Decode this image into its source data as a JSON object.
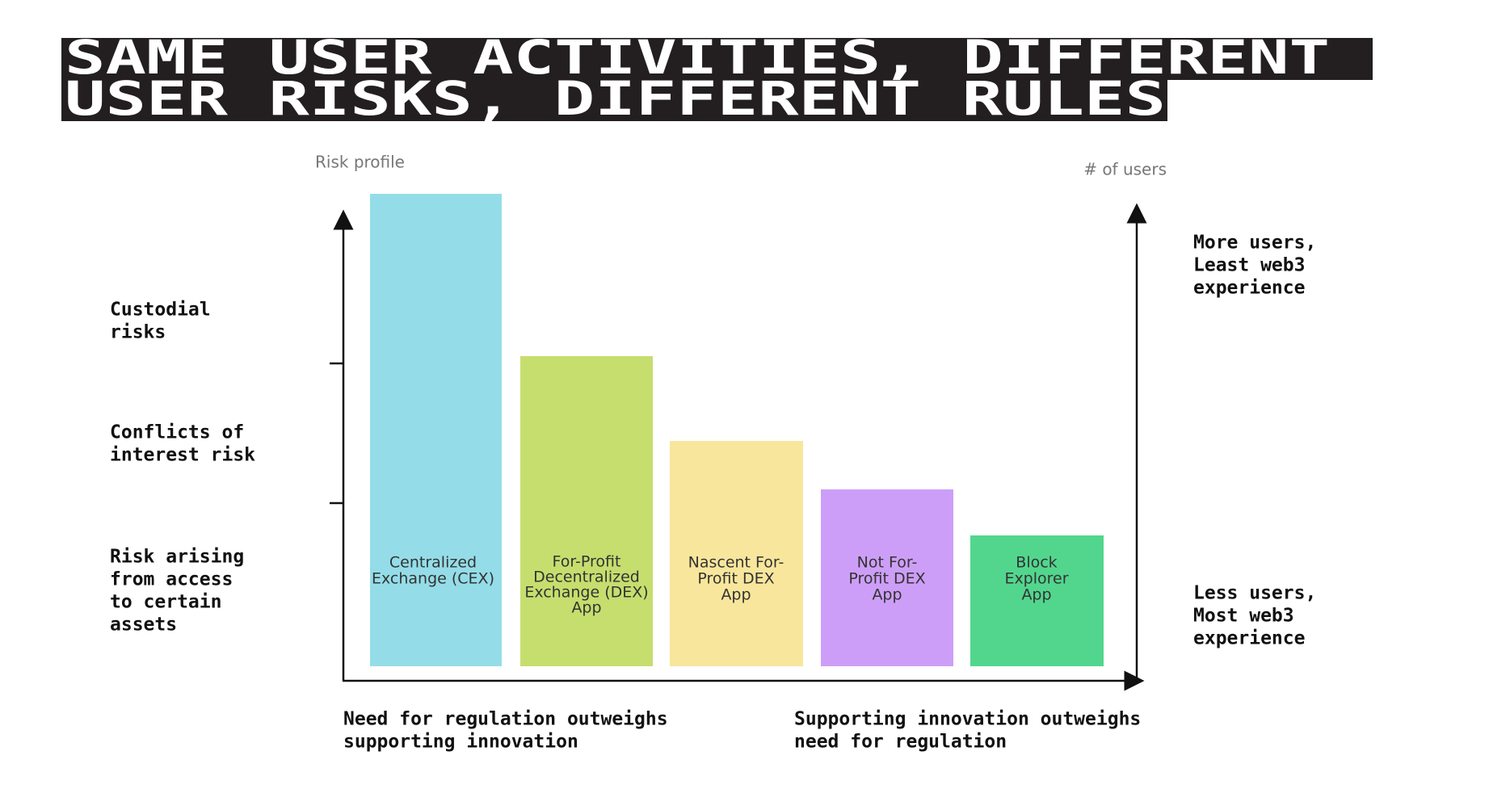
{
  "title": {
    "lines": [
      "SAME USER ACTIVITIES, DIFFERENT",
      "USER RISKS, DIFFERENT RULES"
    ]
  },
  "left_axis": {
    "label": "Risk profile",
    "bands": [
      [
        "Custodial",
        "risks"
      ],
      [
        "Conflicts of",
        "interest risk"
      ],
      [
        "Risk arising",
        "from access",
        "to certain",
        "assets"
      ]
    ]
  },
  "right_axis": {
    "label": "# of users",
    "top": [
      "More users,",
      "Least web3",
      "experience"
    ],
    "bottom": [
      "Less users,",
      "Most web3",
      "experience"
    ]
  },
  "bars": [
    {
      "label": [
        "Centralized",
        "Exchange (CEX)"
      ]
    },
    {
      "label": [
        "For-Profit",
        "Decentralized",
        "Exchange (DEX)",
        "App"
      ]
    },
    {
      "label": [
        "Nascent For-",
        "Profit DEX",
        "App"
      ]
    },
    {
      "label": [
        "Not For-",
        "Profit DEX",
        "App"
      ]
    },
    {
      "label": [
        "Block",
        "Explorer",
        "App"
      ]
    }
  ],
  "bottom": {
    "left": [
      "Need for regulation outweighs",
      "supporting innovation"
    ],
    "right": [
      "Supporting innovation outweighs",
      "need for regulation"
    ]
  }
}
